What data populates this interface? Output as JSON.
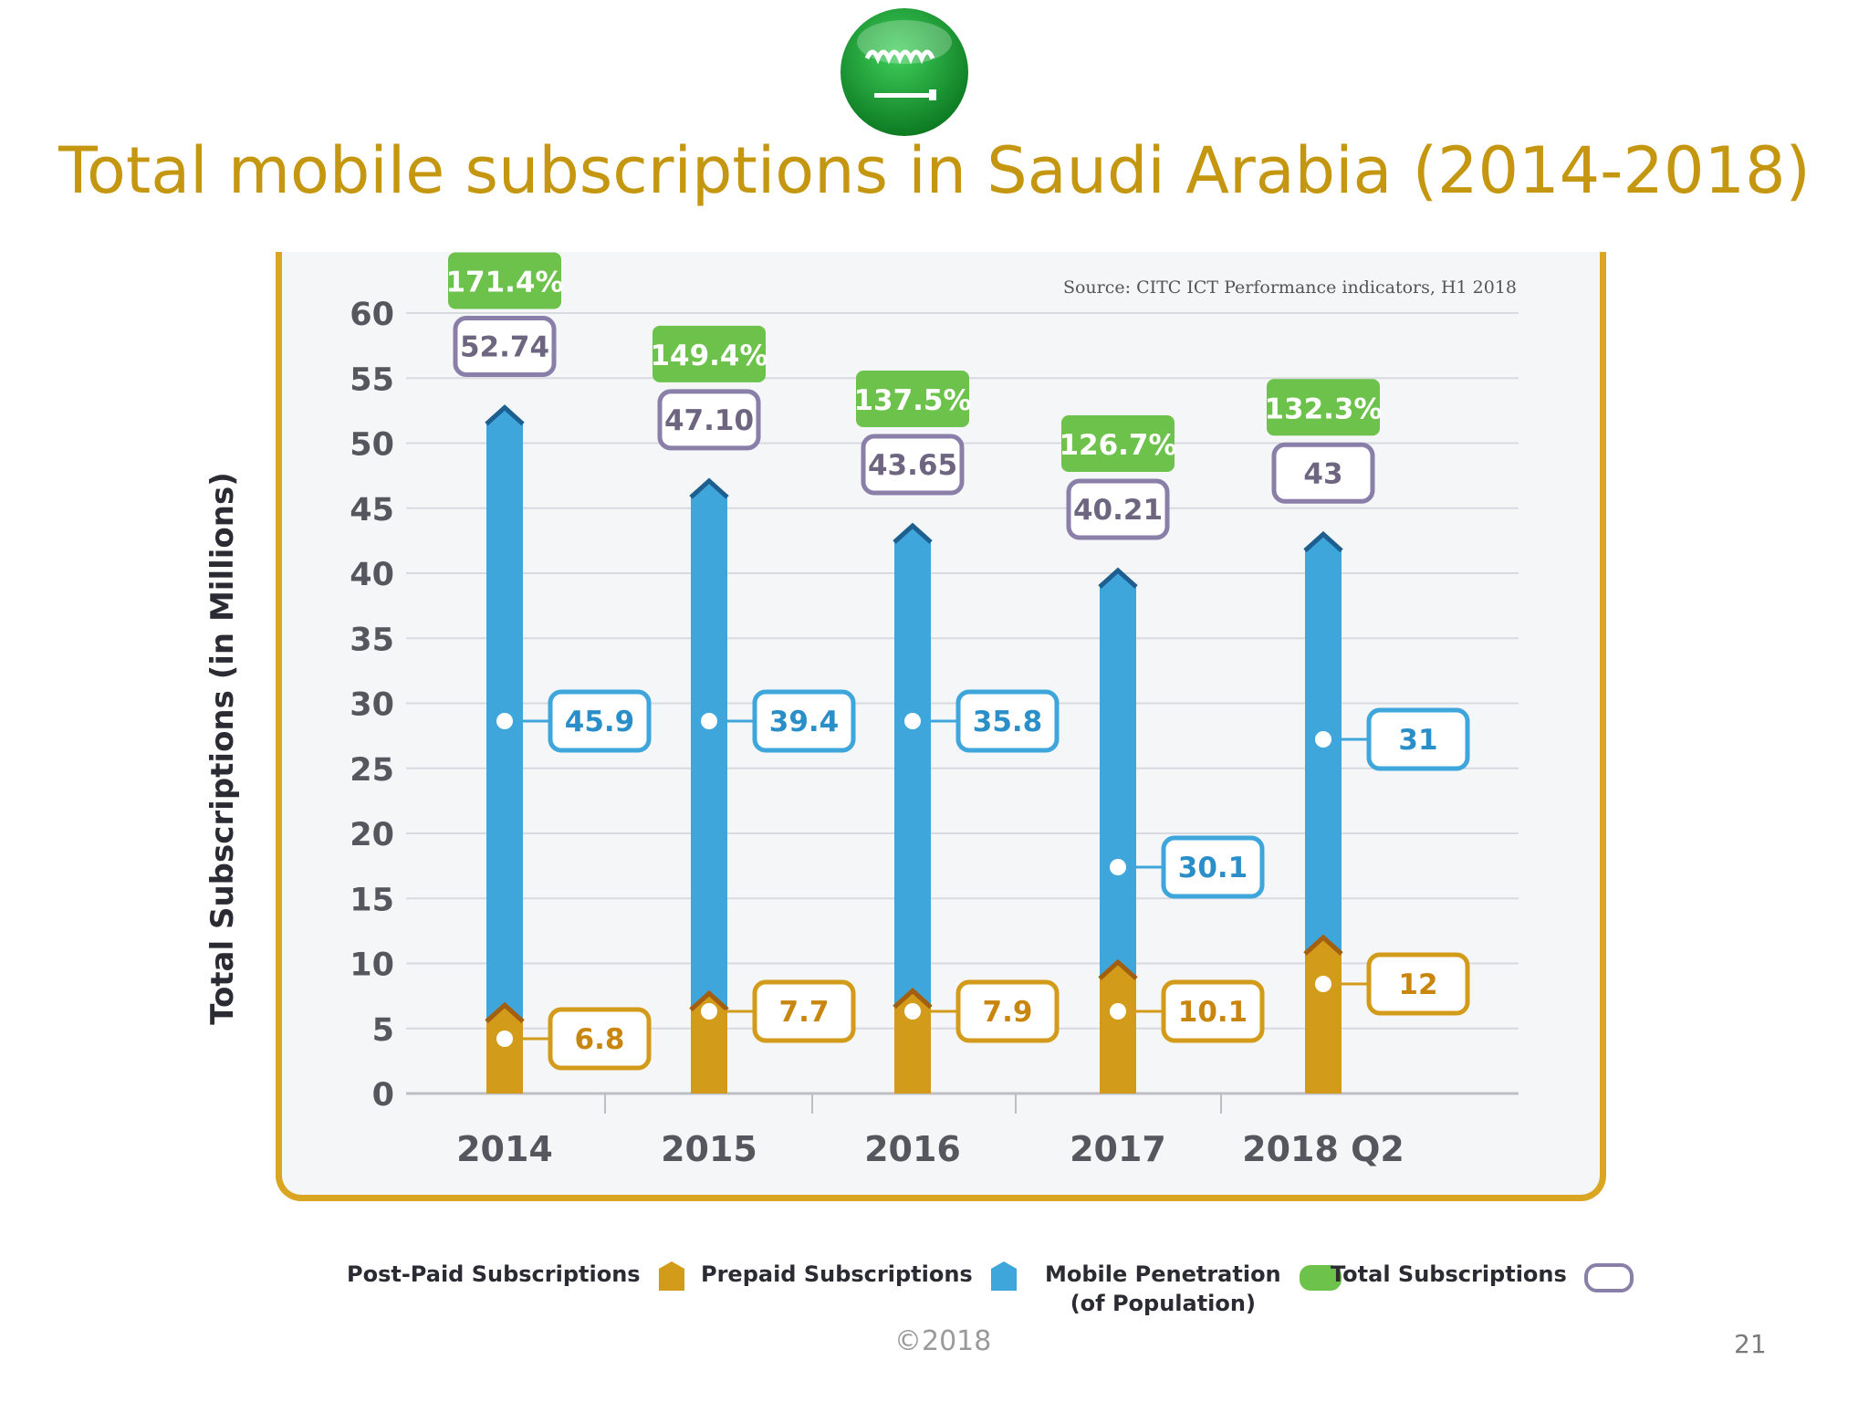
{
  "slide": {
    "title": "Total mobile subscriptions in Saudi Arabia (2014-2018)",
    "footer": "©2018",
    "page_number": "21"
  },
  "logo": {
    "icon": "saudi-flag-emblem-icon",
    "colors": [
      "#1fa33a",
      "#ffffff"
    ]
  },
  "colors": {
    "title": "#c5960f",
    "postpaid": "#d39b1a",
    "prepaid": "#3fa6dc",
    "penetration": "#6cc24a",
    "total": "#8a7fa8",
    "frame": "#daa520"
  },
  "chart_data": {
    "type": "bar",
    "stacked": true,
    "title": "",
    "source": "Source: CITC ICT Performance indicators, H1 2018",
    "xlabel": "",
    "ylabel": "Total Subscriptions (in Millions)",
    "ylim": [
      0,
      60
    ],
    "yticks": [
      0,
      5,
      10,
      15,
      20,
      25,
      30,
      35,
      40,
      45,
      50,
      55,
      60
    ],
    "grid": true,
    "legend_position": "bottom",
    "categories": [
      "2014",
      "2015",
      "2016",
      "2017",
      "2018 Q2"
    ],
    "series": [
      {
        "name": "Post-Paid Subscriptions",
        "values": [
          6.8,
          7.7,
          7.9,
          10.1,
          12
        ],
        "labels": [
          "6.8",
          "7.7",
          "7.9",
          "10.1",
          "12"
        ]
      },
      {
        "name": "Prepaid Subscriptions",
        "values": [
          45.9,
          39.4,
          35.8,
          30.1,
          31
        ],
        "labels": [
          "45.9",
          "39.4",
          "35.8",
          "30.1",
          "31"
        ]
      }
    ],
    "totals": {
      "name": "Total Subscriptions",
      "values": [
        52.74,
        47.1,
        43.65,
        40.21,
        43
      ],
      "labels": [
        "52.74",
        "47.10",
        "43.65",
        "40.21",
        "43"
      ]
    },
    "penetration": {
      "name": "Mobile Penetration\n(of Population)",
      "labels": [
        "171.4%",
        "149.4%",
        "137.5%",
        "126.7%",
        "132.3%"
      ]
    }
  },
  "legend": {
    "postpaid": "Post-Paid Subscriptions",
    "prepaid": "Prepaid Subscriptions",
    "penetration_line1": "Mobile Penetration",
    "penetration_line2": "(of Population)",
    "total": "Total Subscriptions"
  }
}
